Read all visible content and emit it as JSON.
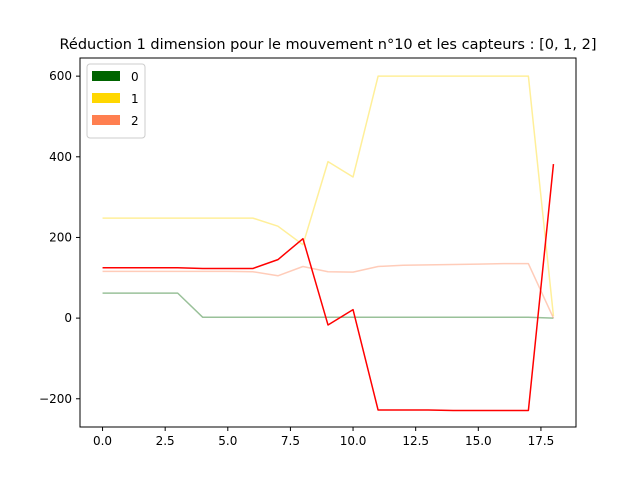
{
  "chart_data": {
    "type": "line",
    "title": "Réduction 1 dimension pour le mouvement n°10 et les capteurs : [0, 1, 2]",
    "xlabel": "",
    "ylabel": "",
    "xlim": [
      -0.9,
      18.9
    ],
    "ylim": [
      -270,
      645
    ],
    "x_ticks": [
      0,
      2.5,
      5,
      7.5,
      10,
      12.5,
      15,
      17.5
    ],
    "x_tick_labels": [
      "0.0",
      "2.5",
      "5.0",
      "7.5",
      "10.0",
      "12.5",
      "15.0",
      "17.5"
    ],
    "y_ticks": [
      -200,
      0,
      200,
      400,
      600
    ],
    "y_tick_labels": [
      "−200",
      "0",
      "200",
      "400",
      "600"
    ],
    "grid": false,
    "legend_position": "upper-left",
    "x": [
      0,
      1,
      2,
      3,
      4,
      5,
      6,
      7,
      8,
      9,
      10,
      11,
      12,
      13,
      14,
      15,
      16,
      17,
      18
    ],
    "series": [
      {
        "name": "0",
        "color": "#006400",
        "opacity": 0.4,
        "values": [
          62,
          62,
          62,
          62,
          2,
          2,
          2,
          2,
          2,
          2,
          2,
          2,
          2,
          2,
          2,
          2,
          2,
          2,
          0
        ]
      },
      {
        "name": "1",
        "color": "#ffd700",
        "opacity": 0.4,
        "values": [
          248,
          248,
          248,
          248,
          248,
          248,
          248,
          228,
          182,
          388,
          350,
          600,
          600,
          600,
          600,
          600,
          600,
          600,
          5
        ]
      },
      {
        "name": "2",
        "color": "#ff7f50",
        "opacity": 0.4,
        "values": [
          116,
          116,
          116,
          116,
          116,
          116,
          115,
          105,
          128,
          115,
          114,
          128,
          131,
          132,
          133,
          134,
          135,
          135,
          0
        ]
      },
      {
        "name": "",
        "color": "#ff0000",
        "opacity": 1,
        "values": [
          125,
          125,
          125,
          125,
          123,
          123,
          123,
          145,
          197,
          -17,
          21,
          -228,
          -228,
          -228,
          -229,
          -229,
          -229,
          -229,
          382
        ]
      }
    ],
    "legend": [
      {
        "label": "0",
        "color": "#006400"
      },
      {
        "label": "1",
        "color": "#ffd700"
      },
      {
        "label": "2",
        "color": "#ff7f50"
      }
    ]
  }
}
